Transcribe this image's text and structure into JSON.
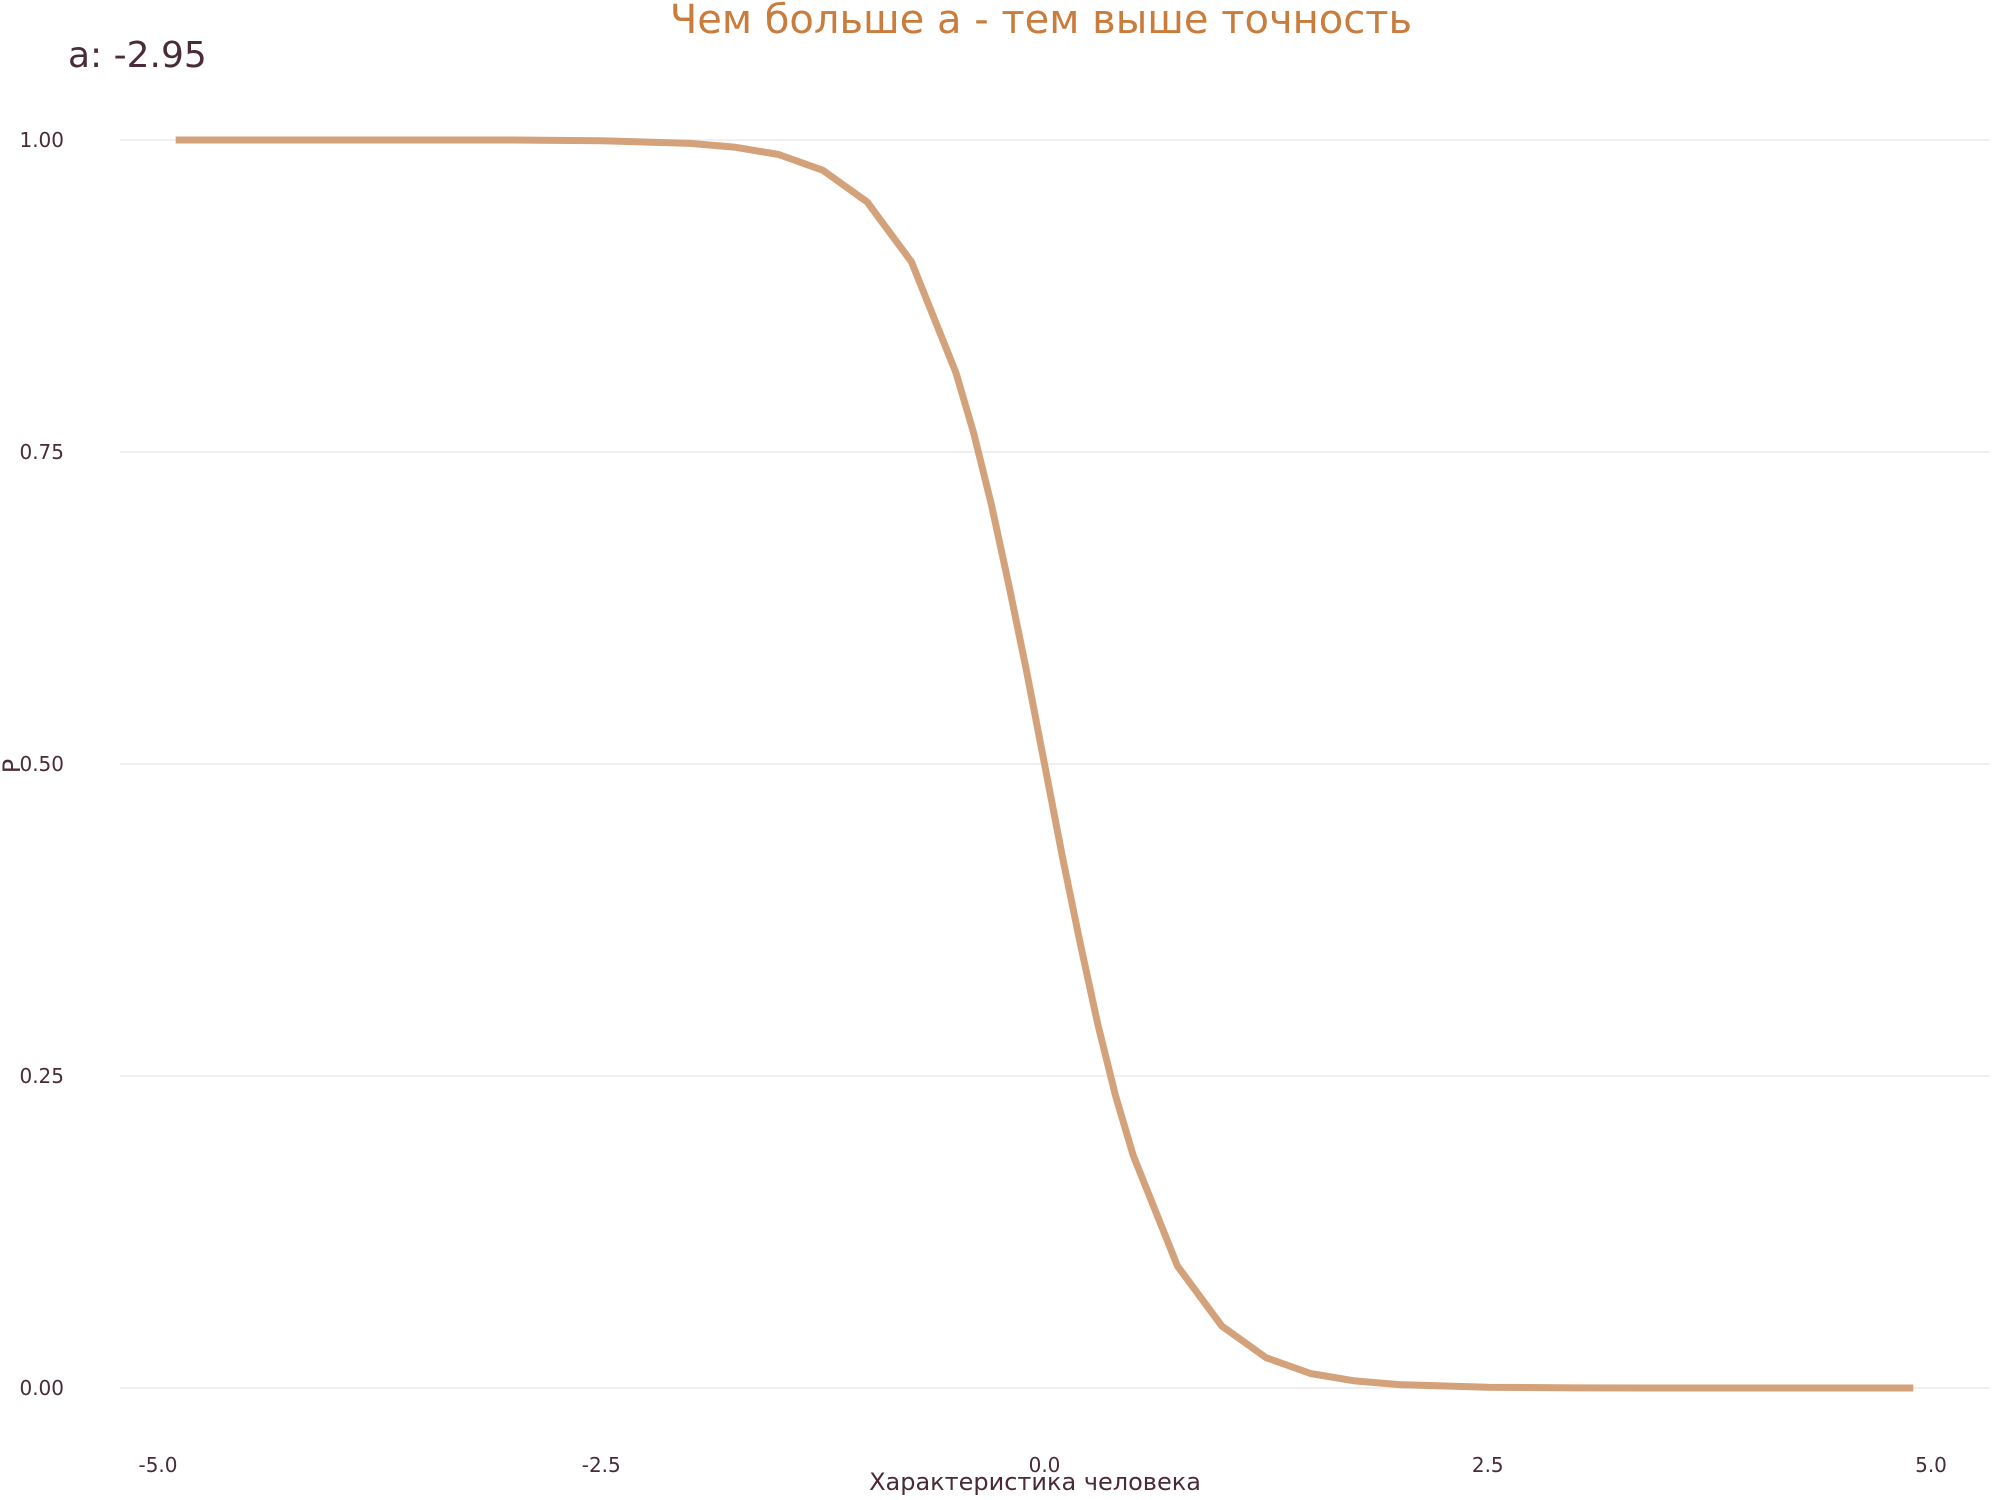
{
  "chart_data": {
    "type": "line",
    "title": "Чем больше a - тем выше точность",
    "frame_label": "a: -2.95",
    "xlabel": "Характеристика человека",
    "ylabel": "P",
    "xlim": [
      -5,
      5
    ],
    "ylim": [
      0,
      1
    ],
    "x_ticks": [
      "-5.0",
      "-2.5",
      "0.0",
      "2.5",
      "5.0"
    ],
    "y_ticks": [
      "0.00",
      "0.25",
      "0.50",
      "0.75",
      "1.00"
    ],
    "grid": true,
    "legend": "none",
    "series": [
      {
        "x": [
          -4.9,
          -4.5,
          -4.0,
          -3.5,
          -3.0,
          -2.5,
          -2.0,
          -1.75,
          -1.5,
          -1.25,
          -1.0,
          -0.75,
          -0.5,
          -0.4,
          -0.3,
          -0.2,
          -0.1,
          0.0,
          0.1,
          0.2,
          0.3,
          0.4,
          0.5,
          0.75,
          1.0,
          1.25,
          1.5,
          1.75,
          2.0,
          2.5,
          3.0,
          3.5,
          4.0,
          4.5,
          4.9
        ],
        "y": [
          1.0,
          1.0,
          1.0,
          1.0,
          1.0,
          0.9994,
          0.9973,
          0.9943,
          0.9884,
          0.9757,
          0.9503,
          0.9023,
          0.8136,
          0.7654,
          0.7082,
          0.6429,
          0.5735,
          0.5,
          0.4265,
          0.3571,
          0.2918,
          0.2346,
          0.1864,
          0.0977,
          0.0497,
          0.0243,
          0.0116,
          0.0057,
          0.0027,
          0.0006,
          0.0001,
          0.0,
          0.0,
          0.0,
          0.0
        ]
      }
    ]
  },
  "colors": {
    "line": "#d4a27a",
    "title": "#c97c3c",
    "text": "#4a2b3a",
    "grid": "#ebebeb"
  }
}
